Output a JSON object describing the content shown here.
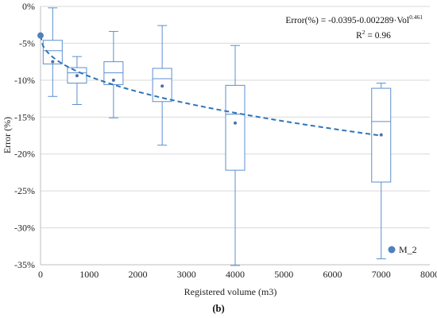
{
  "chart_data": {
    "type": "box",
    "xlabel": "Registered volume (m3)",
    "ylabel": "Error (%)",
    "xlim": [
      0,
      8000
    ],
    "ylim": [
      -35,
      0
    ],
    "x_ticks": [
      0,
      1000,
      2000,
      3000,
      4000,
      5000,
      6000,
      7000,
      8000
    ],
    "y_ticks": [
      0,
      -5,
      -10,
      -15,
      -20,
      -25,
      -30,
      -35
    ],
    "x_tick_labels": [
      "0",
      "1000",
      "2000",
      "3000",
      "4000",
      "5000",
      "6000",
      "7000",
      "8000"
    ],
    "y_tick_labels": [
      "0%",
      "-5%",
      "-10%",
      "-15%",
      "-20%",
      "-25%",
      "-30%",
      "-35%"
    ],
    "grid": "horizontal",
    "box_color": "#5b8fd0",
    "boxes": [
      {
        "x": 250,
        "min": -12.2,
        "q1": -7.8,
        "median": -6.0,
        "q3": -4.6,
        "max": -0.2,
        "mean": -7.5
      },
      {
        "x": 750,
        "min": -13.3,
        "q1": -10.4,
        "median": -9.0,
        "q3": -8.3,
        "max": -6.8,
        "mean": -9.4
      },
      {
        "x": 1500,
        "min": -15.1,
        "q1": -10.6,
        "median": -9.0,
        "q3": -7.5,
        "max": -3.4,
        "mean": -10.0
      },
      {
        "x": 2500,
        "min": -18.8,
        "q1": -12.9,
        "median": -9.8,
        "q3": -8.4,
        "max": -2.6,
        "mean": -10.8
      },
      {
        "x": 4000,
        "min": -35.1,
        "q1": -22.2,
        "median": -14.6,
        "q3": -10.7,
        "max": -5.3,
        "mean": -15.8
      },
      {
        "x": 7000,
        "min": -34.2,
        "q1": -23.8,
        "median": -15.6,
        "q3": -11.1,
        "max": -10.4,
        "mean": -17.4
      }
    ],
    "series": [
      {
        "name": "M_2",
        "type": "scatter",
        "x": [
          0
        ],
        "y": [
          -3.95
        ],
        "color": "#4f81bd"
      }
    ],
    "trendline": {
      "intercept": -0.0395,
      "coefficient": -0.002289,
      "exponent": 0.461,
      "style": "dashed",
      "color": "#2e75b6",
      "x_range": [
        0,
        7000
      ]
    },
    "annotations": {
      "equation_prefix": "Error(%) = -0.0395-0.002289·Vol",
      "equation_exponent": "0.461",
      "r2_prefix": "R",
      "r2_sup": "2",
      "r2_suffix": " = 0.96"
    },
    "legend": {
      "position": "bottom-right",
      "label": "M_2"
    },
    "caption": "(b)"
  }
}
